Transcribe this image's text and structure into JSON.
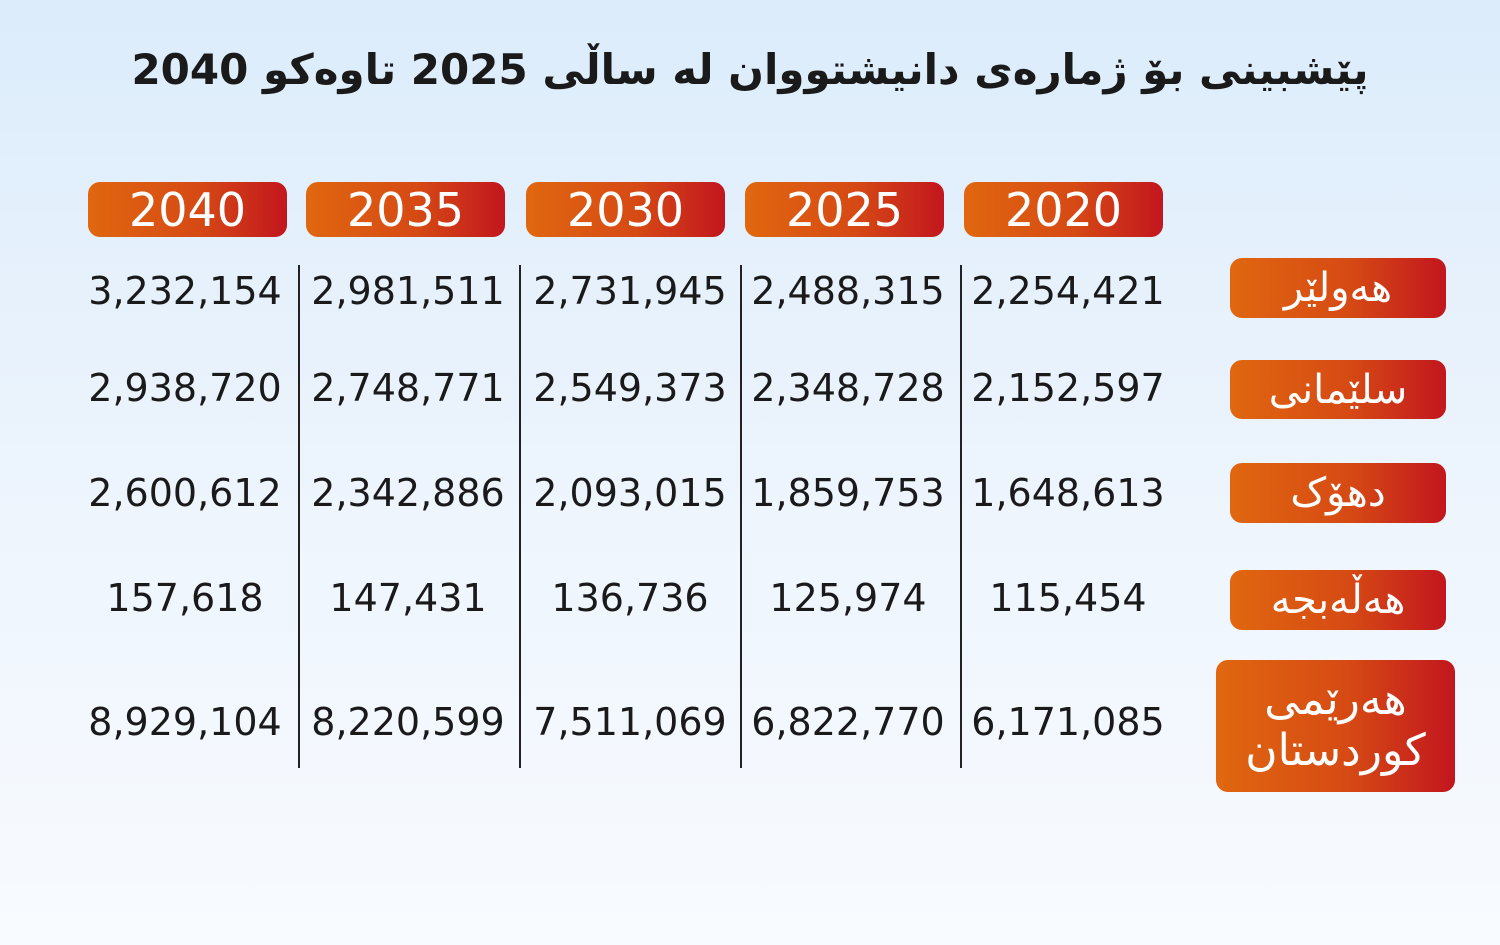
{
  "title": "پێشبینی بۆ ژمارەی دانیشتووان لە ساڵی 2025 تاوەکو 2040",
  "table": {
    "columns": [
      2020,
      2025,
      2030,
      2035,
      2040
    ],
    "rows": [
      {
        "label": "هەولێر",
        "values": [
          "2,254,421",
          "2,488,315",
          "2,731,945",
          "2,981,511",
          "3,232,154"
        ]
      },
      {
        "label": "سلێمانی",
        "values": [
          "2,152,597",
          "2,348,728",
          "2,549,373",
          "2,748,771",
          "2,938,720"
        ]
      },
      {
        "label": "دهۆک",
        "values": [
          "1,648,613",
          "1,859,753",
          "2,093,015",
          "2,342,886",
          "2,600,612"
        ]
      },
      {
        "label": "هەڵەبجە",
        "values": [
          "115,454",
          "125,974",
          "136,736",
          "147,431",
          "157,618"
        ]
      },
      {
        "label": "هەرێمی کوردستان",
        "values": [
          "6,171,085",
          "6,822,770",
          "7,511,069",
          "8,220,599",
          "8,929,104"
        ]
      }
    ]
  }
}
